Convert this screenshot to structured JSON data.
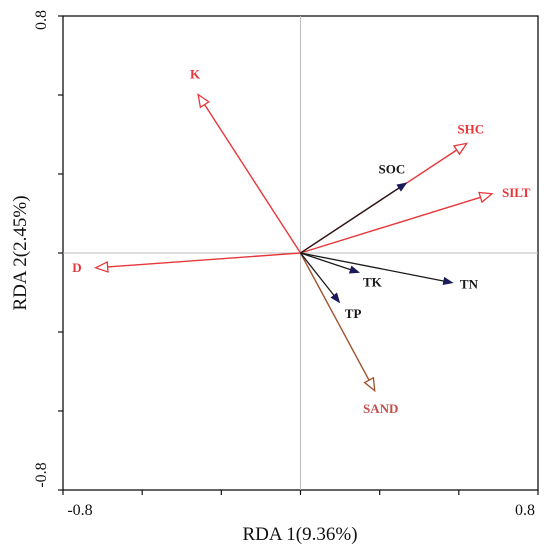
{
  "chart_data": {
    "type": "scatter",
    "subtype": "rda-biplot",
    "xlabel": "RDA 1(9.36%)",
    "ylabel": "RDA 2(2.45%)",
    "xlim": [
      -0.8,
      0.8
    ],
    "ylim": [
      -0.8,
      0.8
    ],
    "x_tick_labels": [
      "-0.8",
      "0.8"
    ],
    "y_tick_labels": [
      "0.8",
      "-0.8"
    ],
    "grid": false,
    "zero_lines": true,
    "explanatory_vectors": [
      {
        "label": "K",
        "x": -0.345,
        "y": 0.535,
        "color": "#e8373a",
        "head": "open"
      },
      {
        "label": "SHC",
        "x": 0.56,
        "y": 0.37,
        "color": "#e8373a",
        "head": "open"
      },
      {
        "label": "SILT",
        "x": 0.645,
        "y": 0.2,
        "color": "#e8373a",
        "head": "open"
      },
      {
        "label": "D",
        "x": -0.69,
        "y": -0.05,
        "color": "#e8373a",
        "head": "open"
      },
      {
        "label": "SAND",
        "x": 0.25,
        "y": -0.465,
        "color": "#a0522d",
        "head": "open"
      }
    ],
    "response_vectors": [
      {
        "label": "SOC",
        "x": 0.355,
        "y": 0.235,
        "color": "#1a1a1a",
        "head": "filled"
      },
      {
        "label": "TK",
        "x": 0.195,
        "y": -0.065,
        "color": "#1a1a1a",
        "head": "filled"
      },
      {
        "label": "TN",
        "x": 0.51,
        "y": -0.1,
        "color": "#1a1a1a",
        "head": "filled"
      },
      {
        "label": "TP",
        "x": 0.13,
        "y": -0.165,
        "color": "#1a1a1a",
        "head": "filled"
      }
    ]
  },
  "colors": {
    "explanatory": "#e8373a",
    "explanatory_label": "#e8373a",
    "sand_label": "#c0504d",
    "response_line": "#1a1a1a",
    "response_head": "#1a1a5a",
    "zero_line": "#bdbdbd",
    "frame": "#111111"
  }
}
